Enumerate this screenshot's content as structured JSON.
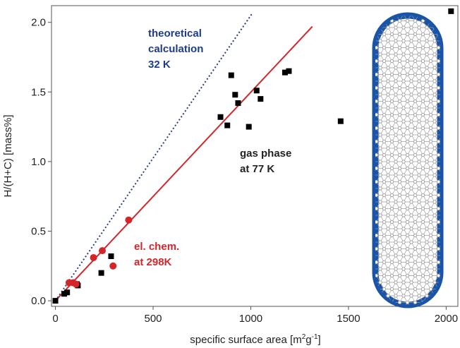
{
  "chart_data": {
    "type": "scatter",
    "xlabel_main": "specific surface area [m",
    "xlabel_sup1": "2",
    "xlabel_mid": "g",
    "xlabel_sup2": "-1",
    "xlabel_end": "]",
    "ylabel": "H/(H+C) [mass%]",
    "xlim": [
      -20,
      2060
    ],
    "ylim": [
      -0.04,
      2.12
    ],
    "x_ticks": [
      0,
      500,
      1000,
      1500,
      2000
    ],
    "y_ticks": [
      0.0,
      0.5,
      1.0,
      1.5,
      2.0
    ],
    "x_tick_labels": [
      "0",
      "500",
      "1000",
      "1500",
      "2000"
    ],
    "y_tick_labels": [
      "0.0",
      "0.5",
      "1.0",
      "1.5",
      "2.0"
    ],
    "series": [
      {
        "marker": "square",
        "color": "#000000",
        "points": [
          [
            0,
            0.0
          ],
          [
            45,
            0.05
          ],
          [
            60,
            0.06
          ],
          [
            115,
            0.11
          ],
          [
            110,
            0.12
          ],
          [
            235,
            0.2
          ],
          [
            285,
            0.32
          ],
          [
            845,
            1.32
          ],
          [
            880,
            1.26
          ],
          [
            900,
            1.62
          ],
          [
            920,
            1.48
          ],
          [
            935,
            1.42
          ],
          [
            990,
            1.25
          ],
          [
            1030,
            1.51
          ],
          [
            1050,
            1.45
          ],
          [
            1175,
            1.64
          ],
          [
            1195,
            1.65
          ],
          [
            1460,
            1.29
          ],
          [
            2025,
            2.08
          ]
        ]
      },
      {
        "marker": "circle",
        "color": "#d4262a",
        "points": [
          [
            70,
            0.13
          ],
          [
            90,
            0.13
          ],
          [
            105,
            0.12
          ],
          [
            195,
            0.31
          ],
          [
            240,
            0.36
          ],
          [
            295,
            0.25
          ],
          [
            375,
            0.58
          ]
        ]
      }
    ],
    "lines": [
      {
        "style": "solid",
        "color": "#d4262a",
        "x": [
          0,
          1315
        ],
        "y": [
          0.0,
          1.97
        ]
      },
      {
        "style": "dotted",
        "color": "#2d3f7a",
        "x": [
          0,
          1010
        ],
        "y": [
          0.0,
          2.07
        ]
      }
    ],
    "annotations": [
      {
        "lines": [
          "theoretical",
          "calculation",
          "32 K"
        ],
        "color": "#1e3c8c"
      },
      {
        "lines": [
          "gas phase",
          "at 77 K"
        ],
        "color": "#222222"
      },
      {
        "lines": [
          "el. chem.",
          "at 298K"
        ],
        "color": "#d4262a"
      }
    ],
    "grid": false
  },
  "inset": {
    "outline_color": "#1a54a8",
    "lattice_color": "#9a9a9a"
  }
}
